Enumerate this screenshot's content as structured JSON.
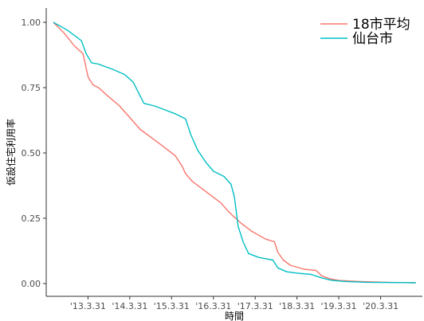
{
  "chart_data": {
    "type": "line",
    "xlabel": "時間",
    "ylabel": "仮設住宅利用率",
    "xlim": [
      "2012-03-31",
      "2021-03-31"
    ],
    "ylim": [
      0,
      1
    ],
    "x_ticks": [
      {
        "date": "2013-03-31",
        "label": "'13.3.31"
      },
      {
        "date": "2014-03-31",
        "label": "'14.3.31"
      },
      {
        "date": "2015-03-31",
        "label": "'15.3.31"
      },
      {
        "date": "2016-03-31",
        "label": "'16.3.31"
      },
      {
        "date": "2017-03-31",
        "label": "'17.3.31"
      },
      {
        "date": "2018-03-31",
        "label": "'18.3.31"
      },
      {
        "date": "2019-03-31",
        "label": "'19.3.31"
      },
      {
        "date": "2020-03-31",
        "label": "'20.3.31"
      }
    ],
    "y_ticks": [
      {
        "value": 1.0,
        "label": "1.00"
      },
      {
        "value": 0.75,
        "label": "0.75"
      },
      {
        "value": 0.5,
        "label": "0.50"
      },
      {
        "value": 0.25,
        "label": "0.25"
      },
      {
        "value": 0.0,
        "label": "0.00"
      }
    ],
    "grid": false,
    "legend_position": "top-right",
    "series": [
      {
        "name": "18市平均",
        "color": "#F8766D",
        "points": [
          [
            "2012-06-01",
            1.0
          ],
          [
            "2012-09-01",
            0.96
          ],
          [
            "2012-12-01",
            0.91
          ],
          [
            "2013-02-15",
            0.88
          ],
          [
            "2013-04-01",
            0.79
          ],
          [
            "2013-05-15",
            0.76
          ],
          [
            "2013-07-01",
            0.75
          ],
          [
            "2013-09-15",
            0.72
          ],
          [
            "2014-01-01",
            0.68
          ],
          [
            "2014-05-01",
            0.62
          ],
          [
            "2014-07-01",
            0.59
          ],
          [
            "2014-11-01",
            0.55
          ],
          [
            "2015-02-01",
            0.52
          ],
          [
            "2015-05-01",
            0.49
          ],
          [
            "2015-07-01",
            0.45
          ],
          [
            "2015-08-01",
            0.42
          ],
          [
            "2015-10-01",
            0.39
          ],
          [
            "2016-01-01",
            0.36
          ],
          [
            "2016-04-01",
            0.33
          ],
          [
            "2016-06-01",
            0.31
          ],
          [
            "2016-08-01",
            0.28
          ],
          [
            "2016-09-15",
            0.26
          ],
          [
            "2016-12-01",
            0.23
          ],
          [
            "2017-03-01",
            0.2
          ],
          [
            "2017-07-01",
            0.17
          ],
          [
            "2017-09-15",
            0.16
          ],
          [
            "2017-10-15",
            0.12
          ],
          [
            "2017-12-01",
            0.09
          ],
          [
            "2018-02-01",
            0.07
          ],
          [
            "2018-06-01",
            0.055
          ],
          [
            "2018-09-15",
            0.05
          ],
          [
            "2018-11-01",
            0.03
          ],
          [
            "2019-01-15",
            0.018
          ],
          [
            "2019-04-01",
            0.012
          ],
          [
            "2019-10-01",
            0.008
          ],
          [
            "2020-06-01",
            0.005
          ],
          [
            "2021-02-01",
            0.003
          ]
        ]
      },
      {
        "name": "仙台市",
        "color": "#00BFC4",
        "points": [
          [
            "2012-06-01",
            1.0
          ],
          [
            "2012-10-01",
            0.97
          ],
          [
            "2013-02-01",
            0.93
          ],
          [
            "2013-03-15",
            0.88
          ],
          [
            "2013-05-01",
            0.845
          ],
          [
            "2013-07-01",
            0.84
          ],
          [
            "2013-11-01",
            0.82
          ],
          [
            "2014-02-15",
            0.8
          ],
          [
            "2014-05-01",
            0.77
          ],
          [
            "2014-08-01",
            0.69
          ],
          [
            "2014-11-01",
            0.68
          ],
          [
            "2015-02-01",
            0.665
          ],
          [
            "2015-05-01",
            0.65
          ],
          [
            "2015-08-01",
            0.63
          ],
          [
            "2015-09-15",
            0.57
          ],
          [
            "2015-11-15",
            0.51
          ],
          [
            "2016-02-01",
            0.46
          ],
          [
            "2016-04-01",
            0.43
          ],
          [
            "2016-07-01",
            0.41
          ],
          [
            "2016-09-01",
            0.38
          ],
          [
            "2016-10-01",
            0.33
          ],
          [
            "2016-11-01",
            0.22
          ],
          [
            "2016-12-15",
            0.16
          ],
          [
            "2017-02-01",
            0.115
          ],
          [
            "2017-05-01",
            0.1
          ],
          [
            "2017-09-01",
            0.09
          ],
          [
            "2017-10-15",
            0.06
          ],
          [
            "2018-01-01",
            0.045
          ],
          [
            "2018-04-01",
            0.04
          ],
          [
            "2018-08-01",
            0.035
          ],
          [
            "2018-11-01",
            0.022
          ],
          [
            "2019-02-01",
            0.012
          ],
          [
            "2019-06-01",
            0.008
          ],
          [
            "2019-12-01",
            0.005
          ],
          [
            "2020-08-01",
            0.004
          ],
          [
            "2021-02-01",
            0.003
          ]
        ]
      }
    ]
  }
}
